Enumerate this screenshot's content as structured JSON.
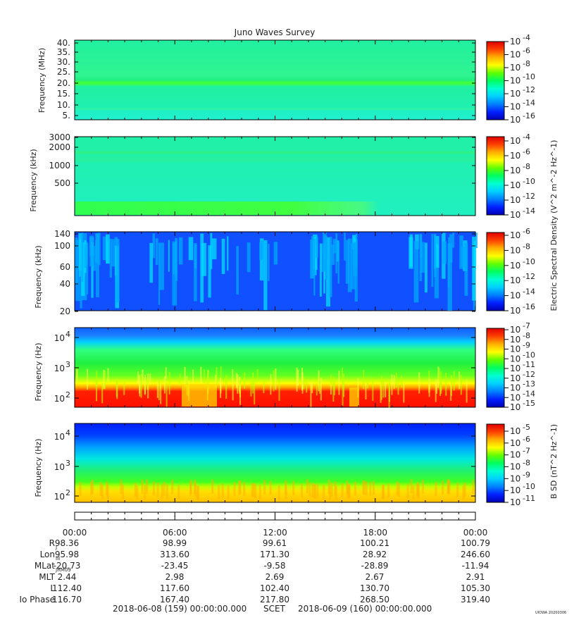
{
  "title": "Juno Waves Survey",
  "colors": {
    "cmap": [
      "#0000b4",
      "#0020ff",
      "#00c8ff",
      "#00ffd0",
      "#00ff60",
      "#40ff00",
      "#c0ff00",
      "#ffff00",
      "#ffb000",
      "#ff4000",
      "#e00000"
    ]
  },
  "chart_data": [
    {
      "type": "heatmap",
      "id": "panel-hfwbr",
      "ylabel": "Frequency (MHz)",
      "yticks": [
        "40.",
        "35.",
        "30.",
        "25.",
        "20.",
        "15.",
        "10.",
        "5."
      ],
      "colorbar_ticks": [
        "10-4",
        "10-6",
        "10-8",
        "10-10",
        "10-12",
        "10-14",
        "10-16"
      ],
      "features": [
        "narrow enhanced band near 21 MHz across full interval",
        "uniform background otherwise"
      ]
    },
    {
      "type": "heatmap",
      "id": "panel-hf",
      "ylabel": "Frequency (kHz)",
      "yticks": [
        "3000",
        "2000",
        "1000",
        "500"
      ],
      "colorbar_ticks": [
        "10-4",
        "10-6",
        "10-8",
        "10-10",
        "10-12",
        "10-14"
      ],
      "features": [
        "faint band near 1.8 MHz",
        "enhanced emission below 200 kHz until ~16:30"
      ]
    },
    {
      "type": "heatmap",
      "id": "panel-lf",
      "ylabel": "Frequency (kHz)",
      "yticks": [
        "140",
        "100",
        "60",
        "40",
        "20"
      ],
      "colorbar_ticks": [
        "10-6",
        "10-8",
        "10-10",
        "10-12",
        "10-14",
        "10-16"
      ],
      "features": [
        "bursty emission streaks 00:00-02:30, 04:00-12:00, 14:00-17:00, 20:00-24:00"
      ]
    },
    {
      "type": "heatmap",
      "id": "panel-e-lowband",
      "ylabel": "Frequency (Hz)",
      "yticks": [
        "10^4",
        "10^3",
        "10^2"
      ],
      "colorbar_ticks": [
        "10-7",
        "10-8",
        "10-9",
        "10-10",
        "10-11",
        "10-12",
        "10-13",
        "10-14",
        "10-15"
      ],
      "colorbar_label": "Electric Spectral Density (V^2 m^-2 Hz^-1)",
      "features": [
        "intense emission below ~300 Hz",
        "mid-intensity emission up to ~3 kHz"
      ]
    },
    {
      "type": "heatmap",
      "id": "panel-b-lowband",
      "ylabel": "Frequency (Hz)",
      "yticks": [
        "10^4",
        "10^3",
        "10^2"
      ],
      "colorbar_ticks": [
        "10-5",
        "10-6",
        "10-7",
        "10-8",
        "10-9",
        "10-10",
        "10-11"
      ],
      "colorbar_label": "B SD (nT^2 Hz^-1)",
      "features": [
        "enhanced emission below ~200 Hz",
        "gradient from low to high frequency"
      ]
    }
  ],
  "time_axis": {
    "ticks": [
      "00:00",
      "06:00",
      "12:00",
      "18:00",
      "00:00"
    ]
  },
  "ephemeris": {
    "rows": [
      {
        "label": "R",
        "sub": "J",
        "values": [
          "98.36",
          "98.99",
          "99.61",
          "100.21",
          "100.79"
        ]
      },
      {
        "label": "Lon",
        "sub": "III",
        "values": [
          "95.98",
          "313.60",
          "171.30",
          "28.92",
          "246.60"
        ]
      },
      {
        "label": "MLat",
        "sub": "JRM09",
        "values": [
          "-20.73",
          "-23.45",
          "-9.58",
          "-28.89",
          "-11.94"
        ]
      },
      {
        "label": "MLT",
        "sub": "",
        "values": [
          "2.44",
          "2.98",
          "2.69",
          "2.67",
          "2.91"
        ]
      },
      {
        "label": "L",
        "sub": "",
        "values": [
          "112.40",
          "117.60",
          "102.40",
          "130.70",
          "105.30"
        ]
      },
      {
        "label": "Io Phase",
        "sub": "",
        "values": [
          "116.70",
          "167.40",
          "217.80",
          "268.50",
          "319.40"
        ]
      }
    ]
  },
  "footer": {
    "start": "2018-06-08 (159) 00:00:00.000",
    "scet": "SCET",
    "end": "2018-06-09 (160) 00:00:00.000"
  },
  "credit": "UIOWA 20200306"
}
